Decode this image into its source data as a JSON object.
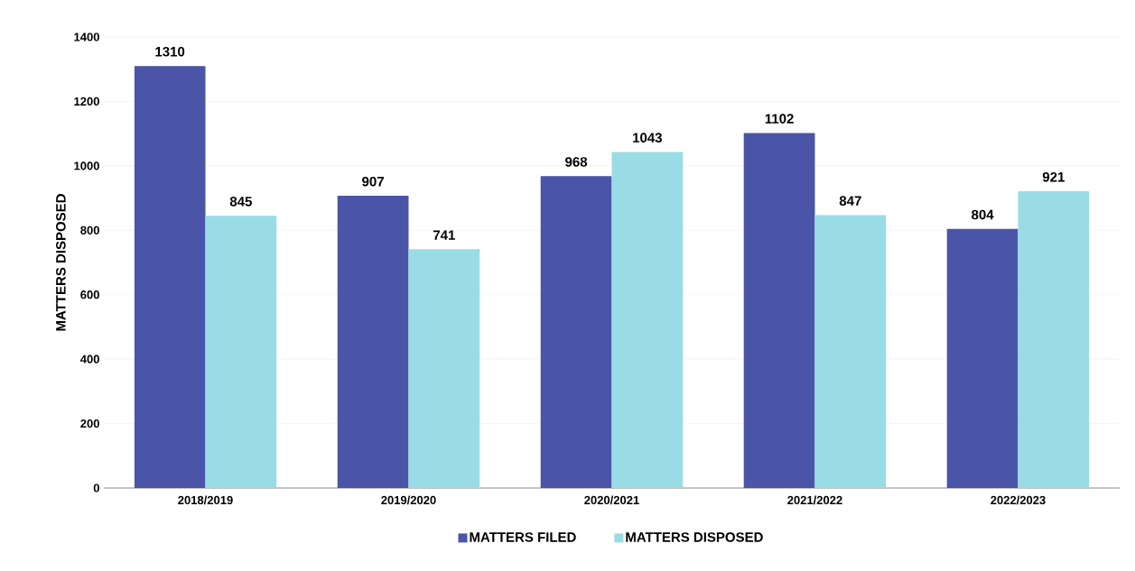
{
  "chart_data": {
    "type": "bar",
    "ylabel": "MATTERS DISPOSED",
    "categories": [
      "2018/2019",
      "2019/2020",
      "2020/2021",
      "2021/2022",
      "2022/2023"
    ],
    "series": [
      {
        "name": "MATTERS FILED",
        "color": "#4a55a8",
        "values": [
          1310,
          907,
          968,
          1102,
          804
        ]
      },
      {
        "name": "MATTERS DISPOSED",
        "color": "#99dce6",
        "values": [
          845,
          741,
          1043,
          847,
          921
        ]
      }
    ],
    "ylim": [
      0,
      1400
    ],
    "yticks": [
      0,
      200,
      400,
      600,
      800,
      1000,
      1200,
      1400
    ],
    "grid": "y",
    "legend": "bottom",
    "data_labels": true
  }
}
